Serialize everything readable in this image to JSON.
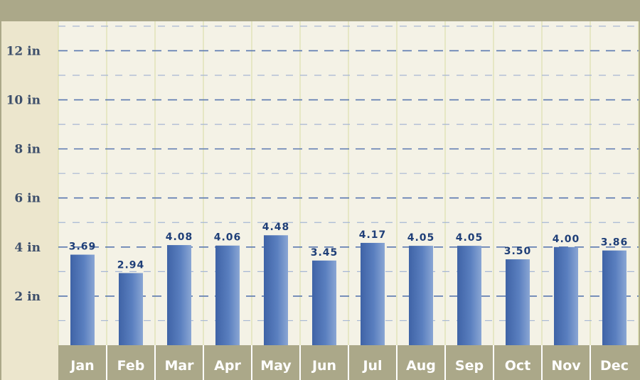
{
  "chart_data": {
    "type": "bar",
    "title": "",
    "xlabel": "",
    "ylabel": "",
    "categories": [
      "Jan",
      "Feb",
      "Mar",
      "Apr",
      "May",
      "Jun",
      "Jul",
      "Aug",
      "Sep",
      "Oct",
      "Nov",
      "Dec"
    ],
    "values": [
      3.69,
      2.94,
      4.08,
      4.06,
      4.48,
      3.45,
      4.17,
      4.05,
      4.05,
      3.5,
      4.0,
      3.86
    ],
    "value_labels": [
      "3.69",
      "2.94",
      "4.08",
      "4.06",
      "4.48",
      "3.45",
      "4.17",
      "4.05",
      "4.05",
      "3.50",
      "4.00",
      "3.86"
    ],
    "ylim": [
      0,
      13.2
    ],
    "yticks": [
      {
        "value": 2,
        "label": "2 in"
      },
      {
        "value": 4,
        "label": "4 in"
      },
      {
        "value": 6,
        "label": "6 in"
      },
      {
        "value": 8,
        "label": "8 in"
      },
      {
        "value": 10,
        "label": "10 in"
      },
      {
        "value": 12,
        "label": "12 in"
      }
    ],
    "grid": true,
    "legend": "none",
    "colors": {
      "frame": "#aba889",
      "axis_panel": "#ece6cd",
      "plot_bg": "#f4f2e6",
      "x_band": "#aba889",
      "bar_dark": "#3f63a6",
      "bar_light": "#8aa6d4",
      "grid_major": "#5a78b0",
      "grid_minor": "#a6b6d4",
      "vertical_grid": "#d8dca2"
    }
  }
}
